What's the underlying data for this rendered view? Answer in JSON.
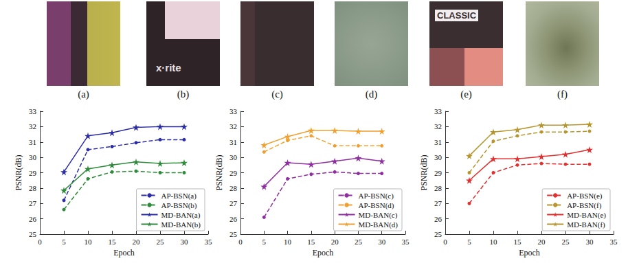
{
  "images": [
    {
      "label": "(a)"
    },
    {
      "label": "(b)",
      "text": "x·rite"
    },
    {
      "label": "(c)"
    },
    {
      "label": "(d)"
    },
    {
      "label": "(e)",
      "text": "CLASSIC"
    },
    {
      "label": "(f)"
    }
  ],
  "chart_data": [
    {
      "type": "line",
      "x_label": "Epoch",
      "y_label": "PSNR(dB)",
      "x": [
        5,
        10,
        15,
        20,
        25,
        30
      ],
      "xlim": [
        0,
        35
      ],
      "xticks": [
        0,
        5,
        10,
        15,
        20,
        25,
        30,
        35
      ],
      "ylim": [
        25,
        33
      ],
      "yticks": [
        25,
        26,
        27,
        28,
        29,
        30,
        31,
        32,
        33
      ],
      "grid": false,
      "legend": "lower right",
      "series": [
        {
          "name": "AP-BSN(a)",
          "color": "#2a2ca6",
          "marker": "circle",
          "line_style": "dashed",
          "values": [
            27.2,
            30.5,
            30.7,
            30.95,
            31.15,
            31.15
          ]
        },
        {
          "name": "AP-BSN(b)",
          "color": "#2e8b3a",
          "marker": "circle",
          "line_style": "dashed",
          "values": [
            26.6,
            28.6,
            29.05,
            29.1,
            29.0,
            29.0
          ]
        },
        {
          "name": "MD-BAN(a)",
          "color": "#2a2ca6",
          "marker": "star",
          "line_style": "solid",
          "values": [
            29.05,
            31.4,
            31.6,
            31.95,
            32.0,
            32.0
          ]
        },
        {
          "name": "MD-BAN(b)",
          "color": "#2e8b3a",
          "marker": "star",
          "line_style": "solid",
          "values": [
            27.85,
            29.25,
            29.5,
            29.7,
            29.6,
            29.65
          ]
        }
      ]
    },
    {
      "type": "line",
      "x_label": "Epoch",
      "y_label": "PSNR(dB)",
      "x": [
        5,
        10,
        15,
        20,
        25,
        30
      ],
      "xlim": [
        0,
        35
      ],
      "xticks": [
        0,
        5,
        10,
        15,
        20,
        25,
        30,
        35
      ],
      "ylim": [
        25,
        33
      ],
      "yticks": [
        25,
        26,
        27,
        28,
        29,
        30,
        31,
        32,
        33
      ],
      "grid": false,
      "legend": "lower right",
      "series": [
        {
          "name": "AP-BSN(c)",
          "color": "#8e2ea0",
          "marker": "circle",
          "line_style": "dashed",
          "values": [
            26.1,
            28.6,
            28.9,
            29.05,
            28.95,
            28.95
          ]
        },
        {
          "name": "AP-BSN(d)",
          "color": "#f0a030",
          "marker": "circle",
          "line_style": "dashed",
          "values": [
            30.35,
            31.1,
            31.4,
            30.75,
            30.75,
            30.75
          ]
        },
        {
          "name": "MD-BAN(c)",
          "color": "#8e2ea0",
          "marker": "star",
          "line_style": "solid",
          "values": [
            28.1,
            29.65,
            29.55,
            29.75,
            29.95,
            29.75
          ]
        },
        {
          "name": "MD-BAN(d)",
          "color": "#f0a030",
          "marker": "star",
          "line_style": "solid",
          "values": [
            30.8,
            31.35,
            31.75,
            31.75,
            31.7,
            31.7
          ]
        }
      ]
    },
    {
      "type": "line",
      "x_label": "Epoch",
      "y_label": "PSNR(dB)",
      "x": [
        5,
        10,
        15,
        20,
        25,
        30
      ],
      "xlim": [
        0,
        35
      ],
      "xticks": [
        0,
        5,
        10,
        15,
        20,
        25,
        30,
        35
      ],
      "ylim": [
        25,
        33
      ],
      "yticks": [
        25,
        26,
        27,
        28,
        29,
        30,
        31,
        32,
        33
      ],
      "grid": false,
      "legend": "lower right",
      "series": [
        {
          "name": "AP-BSN(e)",
          "color": "#e03030",
          "marker": "circle",
          "line_style": "dashed",
          "values": [
            27.0,
            29.0,
            29.5,
            29.6,
            29.55,
            29.55
          ]
        },
        {
          "name": "AP-BSN(f)",
          "color": "#b8962e",
          "marker": "circle",
          "line_style": "dashed",
          "values": [
            29.0,
            31.05,
            31.4,
            31.65,
            31.65,
            31.7
          ]
        },
        {
          "name": "MD-BAN(e)",
          "color": "#e03030",
          "marker": "star",
          "line_style": "solid",
          "values": [
            28.5,
            29.9,
            29.9,
            30.05,
            30.2,
            30.5
          ]
        },
        {
          "name": "MD-BAN(f)",
          "color": "#b8962e",
          "marker": "star",
          "line_style": "solid",
          "values": [
            30.1,
            31.65,
            31.8,
            32.1,
            32.1,
            32.15
          ]
        }
      ]
    }
  ]
}
